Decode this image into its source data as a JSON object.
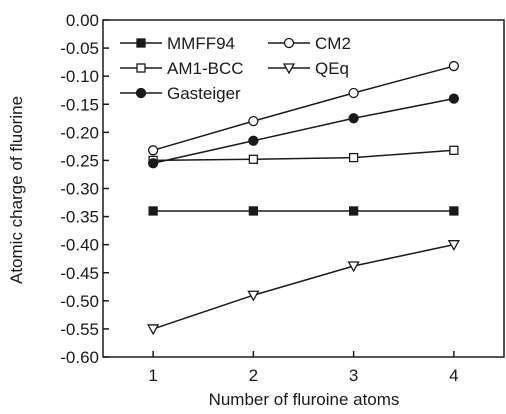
{
  "chart_data": {
    "type": "line",
    "title": "",
    "xlabel": "Number of fluroine atoms",
    "ylabel": "Atomic charge of fluorine",
    "x": [
      1,
      2,
      3,
      4
    ],
    "xlim": [
      0.5,
      4.5
    ],
    "ylim": [
      -0.6,
      0.0
    ],
    "x_ticks": [
      "1",
      "2",
      "3",
      "4"
    ],
    "y_ticks": [
      "0.00",
      "-0.05",
      "-0.10",
      "-0.15",
      "-0.20",
      "-0.25",
      "-0.30",
      "-0.35",
      "-0.40",
      "-0.45",
      "-0.50",
      "-0.55",
      "-0.60"
    ],
    "grid": false,
    "legend_position": "top-left",
    "series": [
      {
        "name": "MMFF94",
        "marker": "filled-square",
        "values": [
          -0.34,
          -0.34,
          -0.34,
          -0.34
        ]
      },
      {
        "name": "CM2",
        "marker": "open-circle",
        "values": [
          -0.232,
          -0.18,
          -0.13,
          -0.082
        ]
      },
      {
        "name": "AM1-BCC",
        "marker": "open-square",
        "values": [
          -0.25,
          -0.248,
          -0.245,
          -0.232
        ]
      },
      {
        "name": "QEq",
        "marker": "open-triangle-down",
        "values": [
          -0.55,
          -0.49,
          -0.438,
          -0.4
        ]
      },
      {
        "name": "Gasteiger",
        "marker": "filled-circle",
        "values": [
          -0.255,
          -0.215,
          -0.175,
          -0.14
        ]
      }
    ],
    "colors": {
      "line": "#1a1a1a",
      "background": "#ffffff"
    }
  }
}
